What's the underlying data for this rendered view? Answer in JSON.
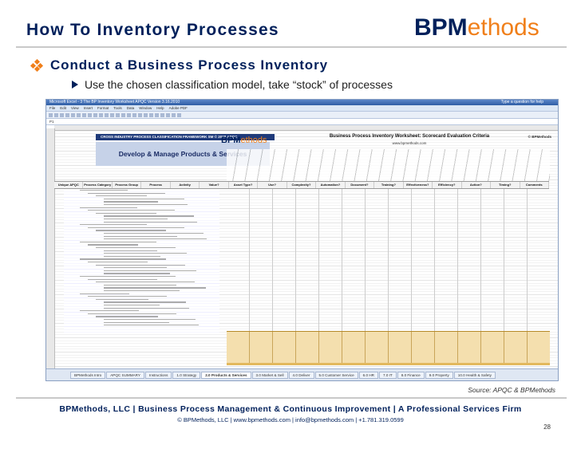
{
  "slide": {
    "title": "How To Inventory Processes",
    "logo_bold": "BPM",
    "logo_rest": "ethods",
    "bullet1": "Conduct a Business Process Inventory",
    "bullet2": "Use the chosen classification model, take “stock” of processes",
    "source": "Source: APQC & BPMethods",
    "footer_line1": "BPMethods, LLC | Business Process Management & Continuous Improvement | A Professional Services Firm",
    "footer_line2": "© BPMethods, LLC  |  www.bpmethods.com  |  info@bpmethods.com  |  +1.781.319.0599",
    "page_number": "28"
  },
  "excel": {
    "window_title": "Microsoft Excel - 3 The BP Inventory Worksheet APQC Version 3.16.2010",
    "help_prompt": "Type a question for help",
    "menu": [
      "File",
      "Edit",
      "View",
      "Insert",
      "Format",
      "Tools",
      "Data",
      "Window",
      "Help",
      "Adobe PDF"
    ],
    "cell_ref": "P1",
    "banner": "CROSS INDUSTRY PROCESS CLASSIFICATION FRAMEWORK SM © 2008 APQC",
    "section_title": "Develop & Manage Products & Services",
    "mini_logo_bold": "BPM",
    "mini_logo_rest": "ethods",
    "worksheet_title": "Business Process Inventory Worksheet: Scorecard Evaluation Criteria",
    "worksheet_url": "www.bpmethods.com",
    "copyright": "© BPMethods",
    "column_headers": [
      "Unique APQC",
      "Process Category",
      "Process Group",
      "Process",
      "Activity",
      "Value?",
      "Asset Type?",
      "Use?",
      "Complexity?",
      "Automation?",
      "Document?",
      "Training?",
      "Effectiveness?",
      "Efficiency?",
      "Action?",
      "Timing?",
      "Comments"
    ],
    "sheet_tabs": [
      "BPMethods Intro",
      "APQC SUMMARY",
      "Instructions",
      "1.0 Strategy",
      "2.0 Products & Services",
      "3.0 Market & Sell",
      "4.0 Deliver",
      "5.0 Customer Service",
      "6.0 HR",
      "7.0 IT",
      "8.0 Finance",
      "9.0 Property",
      "10.0 Health & Safety"
    ],
    "active_tab": "2.0 Products & Services",
    "colors": {
      "brand_navy": "#00205b",
      "brand_orange": "#f07f1a",
      "scorecard_band": "#f4dfae"
    }
  }
}
